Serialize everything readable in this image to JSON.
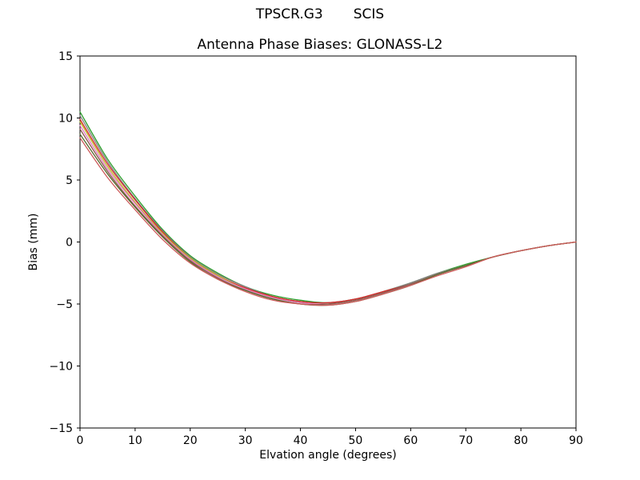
{
  "chart_data": {
    "type": "line",
    "suptitle": {
      "left": "TPSCR.G3",
      "right": "SCIS"
    },
    "title": "Antenna Phase Biases: GLONASS-L2",
    "xlabel": "Elvation angle (degrees)",
    "ylabel": "Bias (mm)",
    "xlim": [
      0,
      90
    ],
    "ylim": [
      -15,
      15
    ],
    "xticks": [
      0,
      10,
      20,
      30,
      40,
      50,
      60,
      70,
      80,
      90
    ],
    "yticks": [
      -15,
      -10,
      -5,
      0,
      5,
      10,
      15
    ],
    "grid": false,
    "legend": "none",
    "frame_color": "#000000",
    "line_width": 1.3,
    "x": [
      0,
      5,
      10,
      15,
      20,
      25,
      30,
      35,
      40,
      45,
      50,
      55,
      60,
      65,
      70,
      75,
      80,
      85,
      90
    ],
    "series": [
      {
        "name": "series-1",
        "color": "#2ca02c",
        "values": [
          10.5,
          6.7,
          3.7,
          1.0,
          -1.1,
          -2.5,
          -3.6,
          -4.3,
          -4.7,
          -4.9,
          -4.6,
          -4.0,
          -3.3,
          -2.5,
          -1.8,
          -1.2,
          -0.7,
          -0.3,
          0.0
        ]
      },
      {
        "name": "series-2",
        "color": "#7f7f7f",
        "values": [
          10.2,
          6.5,
          3.5,
          0.9,
          -1.2,
          -2.6,
          -3.6,
          -4.4,
          -4.8,
          -4.9,
          -4.6,
          -4.0,
          -3.3,
          -2.5,
          -1.9,
          -1.2,
          -0.7,
          -0.3,
          0.0
        ]
      },
      {
        "name": "series-3",
        "color": "#d62728",
        "values": [
          9.9,
          6.3,
          3.4,
          0.8,
          -1.3,
          -2.7,
          -3.7,
          -4.4,
          -4.8,
          -4.9,
          -4.6,
          -4.0,
          -3.4,
          -2.6,
          -1.9,
          -1.2,
          -0.7,
          -0.3,
          0.0
        ]
      },
      {
        "name": "series-4",
        "color": "#bcbd22",
        "values": [
          9.7,
          6.1,
          3.2,
          0.7,
          -1.3,
          -2.7,
          -3.8,
          -4.5,
          -4.9,
          -5.0,
          -4.7,
          -4.1,
          -3.4,
          -2.6,
          -1.9,
          -1.2,
          -0.7,
          -0.3,
          0.0
        ]
      },
      {
        "name": "series-5",
        "color": "#e377c2",
        "values": [
          9.4,
          5.9,
          3.1,
          0.6,
          -1.4,
          -2.8,
          -3.8,
          -4.5,
          -4.9,
          -5.0,
          -4.7,
          -4.1,
          -3.4,
          -2.6,
          -1.9,
          -1.2,
          -0.7,
          -0.3,
          0.0
        ]
      },
      {
        "name": "series-6",
        "color": "#8c564b",
        "values": [
          9.1,
          5.7,
          2.9,
          0.5,
          -1.5,
          -2.9,
          -3.9,
          -4.6,
          -5.0,
          -5.0,
          -4.7,
          -4.1,
          -3.4,
          -2.6,
          -1.9,
          -1.2,
          -0.7,
          -0.3,
          0.0
        ]
      },
      {
        "name": "series-7",
        "color": "#556b2f",
        "values": [
          8.7,
          5.5,
          2.8,
          0.4,
          -1.6,
          -3.0,
          -3.9,
          -4.6,
          -5.0,
          -5.1,
          -4.8,
          -4.2,
          -3.5,
          -2.6,
          -1.9,
          -1.2,
          -0.7,
          -0.3,
          0.0
        ]
      },
      {
        "name": "series-8",
        "color": "#cd5c5c",
        "values": [
          8.4,
          5.2,
          2.6,
          0.2,
          -1.7,
          -3.0,
          -4.0,
          -4.7,
          -5.0,
          -5.1,
          -4.8,
          -4.2,
          -3.5,
          -2.7,
          -2.0,
          -1.2,
          -0.7,
          -0.3,
          0.0
        ]
      }
    ]
  }
}
